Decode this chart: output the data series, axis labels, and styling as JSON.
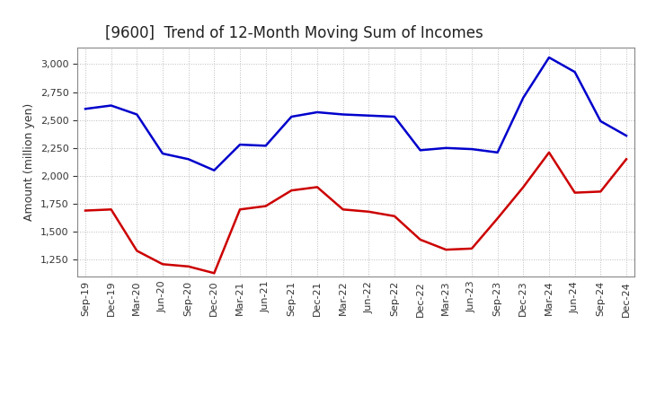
{
  "title": "[9600]  Trend of 12-Month Moving Sum of Incomes",
  "ylabel": "Amount (million yen)",
  "x_labels": [
    "Sep-19",
    "Dec-19",
    "Mar-20",
    "Jun-20",
    "Sep-20",
    "Dec-20",
    "Mar-21",
    "Jun-21",
    "Sep-21",
    "Dec-21",
    "Mar-22",
    "Jun-22",
    "Sep-22",
    "Dec-22",
    "Mar-23",
    "Jun-23",
    "Sep-23",
    "Dec-23",
    "Mar-24",
    "Jun-24",
    "Sep-24",
    "Dec-24"
  ],
  "ordinary_income": [
    2600,
    2630,
    2550,
    2200,
    2150,
    2050,
    2280,
    2270,
    2530,
    2570,
    2550,
    2540,
    2530,
    2230,
    2250,
    2240,
    2210,
    2700,
    3060,
    2930,
    2490,
    2360
  ],
  "net_income": [
    1690,
    1700,
    1330,
    1210,
    1190,
    1130,
    1700,
    1730,
    1870,
    1900,
    1700,
    1680,
    1640,
    1430,
    1340,
    1350,
    1620,
    1900,
    2210,
    1850,
    1860,
    2150
  ],
  "ordinary_color": "#0000CC",
  "net_color": "#CC0000",
  "ylim_min": 1100,
  "ylim_max": 3150,
  "yticks": [
    1250,
    1500,
    1750,
    2000,
    2250,
    2500,
    2750,
    3000
  ],
  "bg_color": "#FFFFFF",
  "grid_color": "#BBBBBB",
  "title_fontsize": 12,
  "ylabel_fontsize": 9,
  "tick_fontsize": 8,
  "legend_fontsize": 9,
  "legend_text_color": "#555555",
  "line_width": 1.8
}
